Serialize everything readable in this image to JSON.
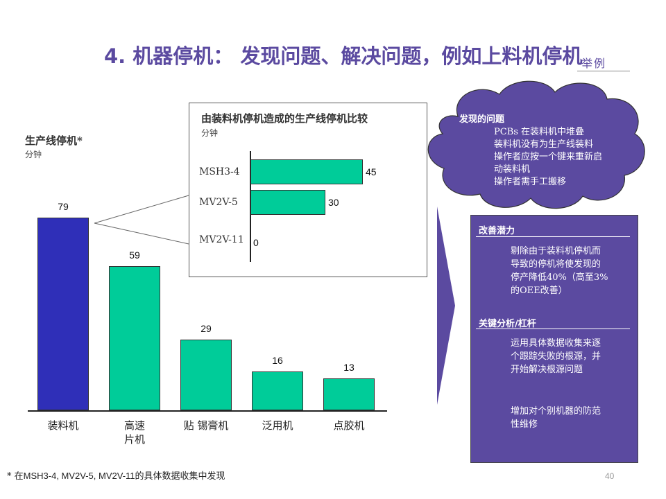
{
  "title": "4. 机器停机： 发现问题、解决问题，例如上料机停机",
  "stamp": "举例",
  "main_chart": {
    "ylabel": "生产线停机*",
    "unit": "分钟"
  },
  "inset_chart": {
    "title": "由装料机停机造成的生产线停机比较",
    "unit": "分钟"
  },
  "chart_data": [
    {
      "type": "bar",
      "categories": [
        "装料机",
        "高速片机",
        "贴 锡膏机",
        "泛用机",
        "点胶机"
      ],
      "category_lines": [
        [
          "装料机"
        ],
        [
          "高速",
          "片机"
        ],
        [
          "贴 锡膏机"
        ],
        [
          "泛用机"
        ],
        [
          "点胶机"
        ]
      ],
      "values": [
        79,
        59,
        29,
        16,
        13
      ],
      "value_labels": [
        "79",
        "59",
        "29",
        "16",
        "13"
      ],
      "colors": [
        "#2f2fb8",
        "#00cc99",
        "#00cc99",
        "#00cc99",
        "#00cc99"
      ],
      "ylabel": "生产线停机*",
      "ylim": [
        0,
        79
      ]
    },
    {
      "type": "bar",
      "orientation": "horizontal",
      "categories": [
        "MSH3-4",
        "MV2V-5",
        "MV2V-11"
      ],
      "values": [
        45,
        30,
        0
      ],
      "value_labels": [
        "45",
        "30",
        "0"
      ],
      "colors": [
        "#00cc99",
        "#00cc99",
        "#00cc99"
      ],
      "title": "由装料机停机造成的生产线停机比较",
      "xlim": [
        0,
        45
      ]
    }
  ],
  "cloud": {
    "heading": "发现的问题",
    "lines": [
      "PCBs 在装料机中堆叠",
      "装料机没有为生产线装料",
      "操作者应按一个键来重新启",
      "动装料机",
      "操作者需手工搬移"
    ]
  },
  "panel": {
    "section1_heading": "改善潜力",
    "section1_lines": [
      "剔除由于装料机停机而",
      "导致的停机将使发现的",
      "停产降低40%（高至3%",
      "的OEE改善）"
    ],
    "section2_heading": "关键分析/杠杆",
    "section2_lines_a": [
      "运用具体数据收集来逐",
      "个跟踪失败的根源，并",
      "开始解决根源问题"
    ],
    "section2_lines_b": [
      "增加对个别机器的防范",
      "性维修"
    ]
  },
  "footnote": {
    "prefix": "* 在",
    "machines": "MSH3-4, MV2V-5, MV2V-11",
    "suffix": "的具体数据收集中发现"
  },
  "page_number": "40"
}
